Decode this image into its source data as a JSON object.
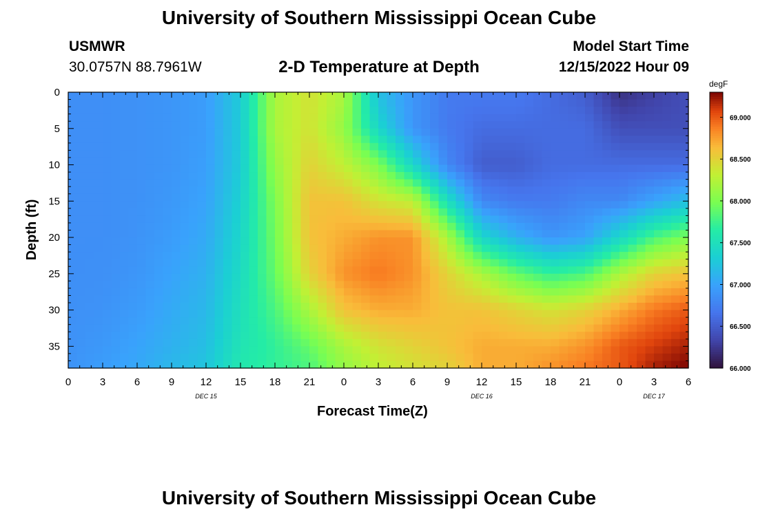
{
  "page": {
    "title": "University of Southern Mississippi Ocean Cube",
    "station": "USMWR",
    "coords": "30.0757N  88.7961W",
    "subtitle": "2-D Temperature at Depth",
    "model_label": "Model Start Time",
    "model_time": "12/15/2022 Hour 09",
    "footer_title": "University of Southern Mississippi Ocean Cube"
  },
  "chart_data": {
    "type": "heatmap",
    "title": "2-D Temperature at Depth",
    "xlabel": "Forecast Time(Z)",
    "ylabel": "Depth (ft)",
    "x_tick_labels": [
      "0",
      "3",
      "6",
      "9",
      "12",
      "15",
      "18",
      "21",
      "0",
      "3",
      "6",
      "9",
      "12",
      "15",
      "18",
      "21",
      "0",
      "3",
      "6"
    ],
    "date_labels": [
      {
        "text": "DEC 15",
        "tick_index": 4
      },
      {
        "text": "DEC 16",
        "tick_index": 12
      },
      {
        "text": "DEC 17",
        "tick_index": 17
      }
    ],
    "x_range_hours": [
      0,
      54
    ],
    "y_ticks": [
      0,
      5,
      10,
      15,
      20,
      25,
      30,
      35
    ],
    "y_range_ft": [
      0,
      38
    ],
    "y_inverted": true,
    "colorbar": {
      "unit": "degF",
      "range": [
        66.0,
        69.3
      ],
      "ticks": [
        "66.000",
        "66.500",
        "67.000",
        "67.500",
        "68.000",
        "68.500",
        "69.000"
      ],
      "colormap": "turbo"
    },
    "grid_depths_ft": [
      0,
      5,
      10,
      15,
      20,
      25,
      30,
      35,
      38
    ],
    "series": [
      {
        "hour": 0,
        "temps": [
          66.85,
          66.85,
          66.85,
          66.85,
          66.85,
          66.85,
          66.86,
          66.87,
          66.88
        ]
      },
      {
        "hour": 3,
        "temps": [
          66.85,
          66.85,
          66.85,
          66.85,
          66.85,
          66.86,
          66.88,
          66.92,
          66.96
        ]
      },
      {
        "hour": 6,
        "temps": [
          66.87,
          66.87,
          66.87,
          66.87,
          66.88,
          66.9,
          66.94,
          67.0,
          67.03
        ]
      },
      {
        "hour": 9,
        "temps": [
          66.9,
          66.9,
          66.9,
          66.92,
          66.95,
          67.0,
          67.05,
          67.1,
          67.15
        ]
      },
      {
        "hour": 12,
        "temps": [
          66.95,
          66.95,
          66.97,
          67.0,
          67.05,
          67.1,
          67.15,
          67.2,
          67.25
        ]
      },
      {
        "hour": 15,
        "temps": [
          67.3,
          67.3,
          67.3,
          67.35,
          67.4,
          67.45,
          67.5,
          67.55,
          67.6
        ]
      },
      {
        "hour": 18,
        "temps": [
          68.2,
          68.2,
          68.1,
          68.0,
          67.95,
          67.9,
          67.8,
          67.7,
          67.7
        ]
      },
      {
        "hour": 21,
        "temps": [
          68.4,
          68.4,
          68.5,
          68.6,
          68.6,
          68.5,
          68.2,
          67.9,
          67.8
        ]
      },
      {
        "hour": 24,
        "temps": [
          68.2,
          68.1,
          68.3,
          68.6,
          68.7,
          68.8,
          68.6,
          68.2,
          68.1
        ]
      },
      {
        "hour": 27,
        "temps": [
          67.2,
          67.4,
          68.0,
          68.4,
          68.8,
          68.9,
          68.7,
          68.4,
          68.3
        ]
      },
      {
        "hour": 30,
        "temps": [
          66.9,
          66.9,
          67.4,
          68.3,
          68.8,
          68.8,
          68.7,
          68.5,
          68.4
        ]
      },
      {
        "hour": 33,
        "temps": [
          66.7,
          66.7,
          66.8,
          67.5,
          68.2,
          68.5,
          68.6,
          68.6,
          68.5
        ]
      },
      {
        "hour": 36,
        "temps": [
          66.7,
          66.6,
          66.5,
          66.8,
          67.4,
          68.2,
          68.6,
          68.7,
          68.7
        ]
      },
      {
        "hour": 39,
        "temps": [
          66.7,
          66.6,
          66.5,
          66.7,
          67.1,
          67.9,
          68.5,
          68.7,
          68.7
        ]
      },
      {
        "hour": 42,
        "temps": [
          66.6,
          66.6,
          66.6,
          66.7,
          66.9,
          67.7,
          68.4,
          68.7,
          68.8
        ]
      },
      {
        "hour": 45,
        "temps": [
          66.5,
          66.6,
          66.6,
          66.8,
          67.0,
          67.8,
          68.5,
          68.8,
          68.9
        ]
      },
      {
        "hour": 48,
        "temps": [
          66.2,
          66.4,
          66.6,
          66.8,
          67.4,
          68.2,
          68.7,
          69.0,
          69.0
        ]
      },
      {
        "hour": 51,
        "temps": [
          66.3,
          66.4,
          66.6,
          67.0,
          67.8,
          68.5,
          68.9,
          69.1,
          69.2
        ]
      },
      {
        "hour": 54,
        "temps": [
          66.4,
          66.4,
          66.6,
          67.2,
          68.0,
          68.6,
          69.0,
          69.2,
          69.3
        ]
      }
    ]
  }
}
